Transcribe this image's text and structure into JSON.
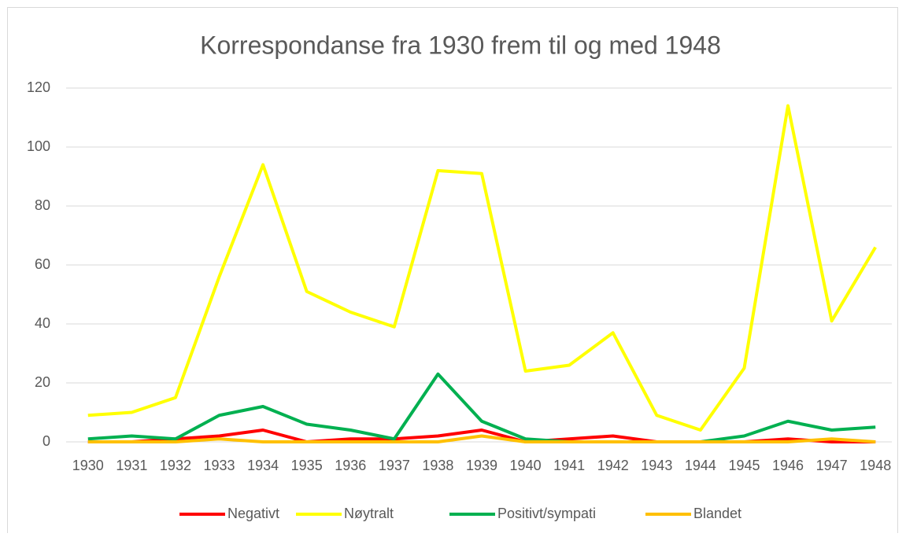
{
  "chart_data": {
    "type": "line",
    "title": "Korrespondanse fra 1930 frem til og med 1948",
    "categories": [
      "1930",
      "1931",
      "1932",
      "1933",
      "1934",
      "1935",
      "1936",
      "1937",
      "1938",
      "1939",
      "1940",
      "1941",
      "1942",
      "1943",
      "1944",
      "1945",
      "1946",
      "1947",
      "1948"
    ],
    "series": [
      {
        "name": "Negativt",
        "color": "#ff0000",
        "values": [
          0,
          0,
          1,
          2,
          4,
          0,
          1,
          1,
          2,
          4,
          0,
          1,
          2,
          0,
          0,
          0,
          1,
          0,
          0
        ]
      },
      {
        "name": "Nøytralt",
        "color": "#ffff00",
        "values": [
          9,
          10,
          15,
          56,
          94,
          51,
          44,
          39,
          92,
          91,
          24,
          26,
          37,
          9,
          4,
          25,
          114,
          41,
          66
        ]
      },
      {
        "name": "Positivt/sympati",
        "color": "#00b050",
        "values": [
          1,
          2,
          1,
          9,
          12,
          6,
          4,
          1,
          23,
          7,
          1,
          0,
          0,
          0,
          0,
          2,
          7,
          4,
          5
        ]
      },
      {
        "name": "Blandet",
        "color": "#ffc000",
        "values": [
          0,
          0,
          0,
          1,
          0,
          0,
          0,
          0,
          0,
          2,
          0,
          0,
          0,
          0,
          0,
          0,
          0,
          1,
          0
        ]
      }
    ],
    "ylim": [
      0,
      120
    ],
    "yticks": [
      0,
      20,
      40,
      60,
      80,
      100,
      120
    ],
    "grid": true,
    "legend": "bottom"
  }
}
